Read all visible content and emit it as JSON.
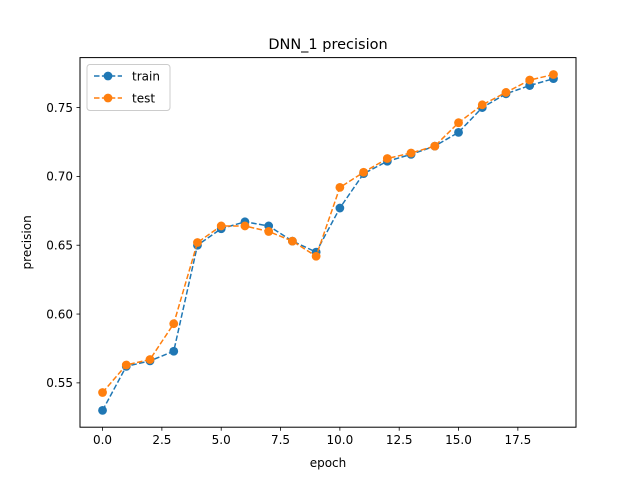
{
  "chart_data": {
    "type": "line",
    "title": "DNN_1 precision",
    "xlabel": "epoch",
    "ylabel": "precision",
    "xlim": [
      -0.95,
      19.95
    ],
    "ylim": [
      0.5178,
      0.7863
    ],
    "xticks": [
      0.0,
      2.5,
      5.0,
      7.5,
      10.0,
      12.5,
      15.0,
      17.5
    ],
    "xtick_labels": [
      "0.0",
      "2.5",
      "5.0",
      "7.5",
      "10.0",
      "12.5",
      "15.0",
      "17.5"
    ],
    "yticks": [
      0.55,
      0.6,
      0.65,
      0.7,
      0.75
    ],
    "ytick_labels": [
      "0.55",
      "0.60",
      "0.65",
      "0.70",
      "0.75"
    ],
    "grid": false,
    "legend_position": "upper-left",
    "x": [
      0,
      1,
      2,
      3,
      4,
      5,
      6,
      7,
      8,
      9,
      10,
      11,
      12,
      13,
      14,
      15,
      16,
      17,
      18,
      19
    ],
    "series": [
      {
        "name": "train",
        "color": "#1f77b4",
        "marker": "circle",
        "linestyle": "dashed",
        "values": [
          0.53,
          0.562,
          0.566,
          0.573,
          0.65,
          0.662,
          0.667,
          0.664,
          0.653,
          0.645,
          0.677,
          0.702,
          0.711,
          0.716,
          0.722,
          0.732,
          0.75,
          0.76,
          0.766,
          0.771
        ]
      },
      {
        "name": "test",
        "color": "#ff7f0e",
        "marker": "circle",
        "linestyle": "dashed",
        "values": [
          0.543,
          0.563,
          0.567,
          0.593,
          0.652,
          0.664,
          0.664,
          0.66,
          0.653,
          0.642,
          0.692,
          0.703,
          0.713,
          0.717,
          0.722,
          0.739,
          0.752,
          0.761,
          0.77,
          0.774
        ]
      }
    ]
  }
}
